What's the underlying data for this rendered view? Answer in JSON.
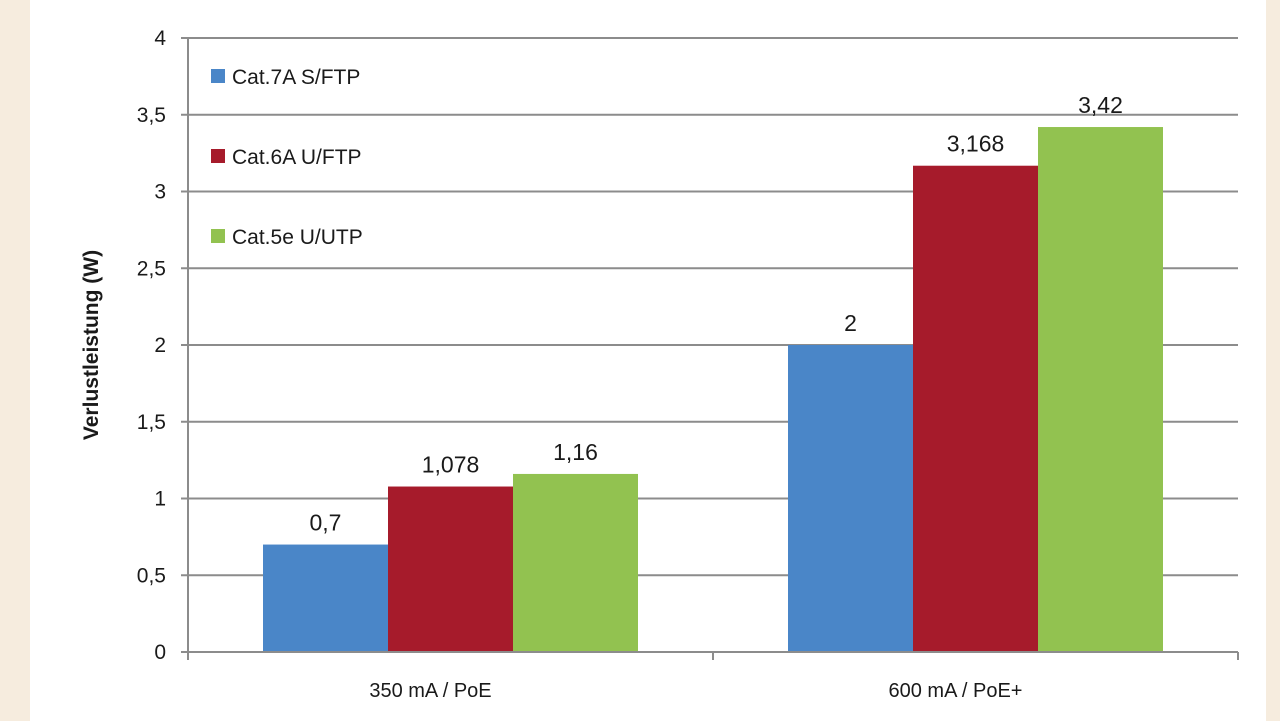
{
  "chart_data": {
    "type": "bar",
    "ylabel": "Verlustleistung (W)",
    "xlabel": "",
    "ylim": [
      0,
      4
    ],
    "ytick_step": 0.5,
    "ytick_labels": [
      "0",
      "0,5",
      "1",
      "1,5",
      "2",
      "2,5",
      "3",
      "3,5",
      "4"
    ],
    "grid": true,
    "legend_position": "top-left",
    "categories": [
      "350 mA /  PoE",
      "600 mA / PoE+"
    ],
    "series": [
      {
        "name": "Cat.7A S/FTP",
        "color": "#4a86c8",
        "values": [
          0.7,
          2
        ],
        "labels": [
          "0,7",
          "2"
        ]
      },
      {
        "name": "Cat.6A U/FTP",
        "color": "#a61b2b",
        "values": [
          1.078,
          3.168
        ],
        "labels": [
          "1,078",
          "3,168"
        ]
      },
      {
        "name": "Cat.5e U/UTP",
        "color": "#92c250",
        "values": [
          1.16,
          3.42
        ],
        "labels": [
          "1,16",
          "3,42"
        ]
      }
    ]
  }
}
